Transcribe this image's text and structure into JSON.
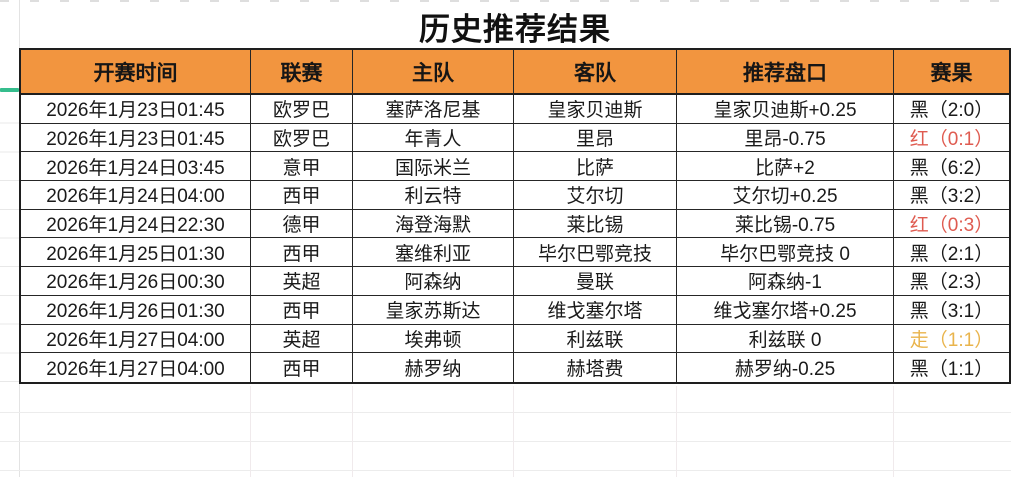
{
  "title": "历史推荐结果",
  "colors": {
    "header_bg": "#F2953F",
    "border": "#1F1F1F",
    "result_black": "#1A1A1A",
    "result_red": "#DF5B50",
    "result_push": "#E9B44C",
    "freeze_line": "#35BD8D"
  },
  "table": {
    "headers": [
      "开赛时间",
      "联赛",
      "主队",
      "客队",
      "推荐盘口",
      "赛果"
    ],
    "rows": [
      {
        "time": "2026年1月23日01:45",
        "league": "欧罗巴",
        "home": "塞萨洛尼基",
        "away": "皇家贝迪斯",
        "handicap": "皇家贝迪斯+0.25",
        "result": "黑（2:0）",
        "result_type": "black"
      },
      {
        "time": "2026年1月23日01:45",
        "league": "欧罗巴",
        "home": "年青人",
        "away": "里昂",
        "handicap": "里昂-0.75",
        "result": "红（0:1）",
        "result_type": "red"
      },
      {
        "time": "2026年1月24日03:45",
        "league": "意甲",
        "home": "国际米兰",
        "away": "比萨",
        "handicap": "比萨+2",
        "result": "黑（6:2）",
        "result_type": "black"
      },
      {
        "time": "2026年1月24日04:00",
        "league": "西甲",
        "home": "利云特",
        "away": "艾尔切",
        "handicap": "艾尔切+0.25",
        "result": "黑（3:2）",
        "result_type": "black"
      },
      {
        "time": "2026年1月24日22:30",
        "league": "德甲",
        "home": "海登海默",
        "away": "莱比锡",
        "handicap": "莱比锡-0.75",
        "result": "红（0:3）",
        "result_type": "red"
      },
      {
        "time": "2026年1月25日01:30",
        "league": "西甲",
        "home": "塞维利亚",
        "away": "毕尔巴鄂竞技",
        "handicap": "毕尔巴鄂竞技 0",
        "result": "黑（2:1）",
        "result_type": "black"
      },
      {
        "time": "2026年1月26日00:30",
        "league": "英超",
        "home": "阿森纳",
        "away": "曼联",
        "handicap": "阿森纳-1",
        "result": "黑（2:3）",
        "result_type": "black"
      },
      {
        "time": "2026年1月26日01:30",
        "league": "西甲",
        "home": "皇家苏斯达",
        "away": "维戈塞尔塔",
        "handicap": "维戈塞尔塔+0.25",
        "result": "黑（3:1）",
        "result_type": "black"
      },
      {
        "time": "2026年1月27日04:00",
        "league": "英超",
        "home": "埃弗顿",
        "away": "利兹联",
        "handicap": "利兹联 0",
        "result": "走（1:1）",
        "result_type": "push"
      },
      {
        "time": "2026年1月27日04:00",
        "league": "西甲",
        "home": "赫罗纳",
        "away": "赫塔费",
        "handicap": "赫罗纳-0.25",
        "result": "黑（1:1）",
        "result_type": "black"
      }
    ]
  }
}
